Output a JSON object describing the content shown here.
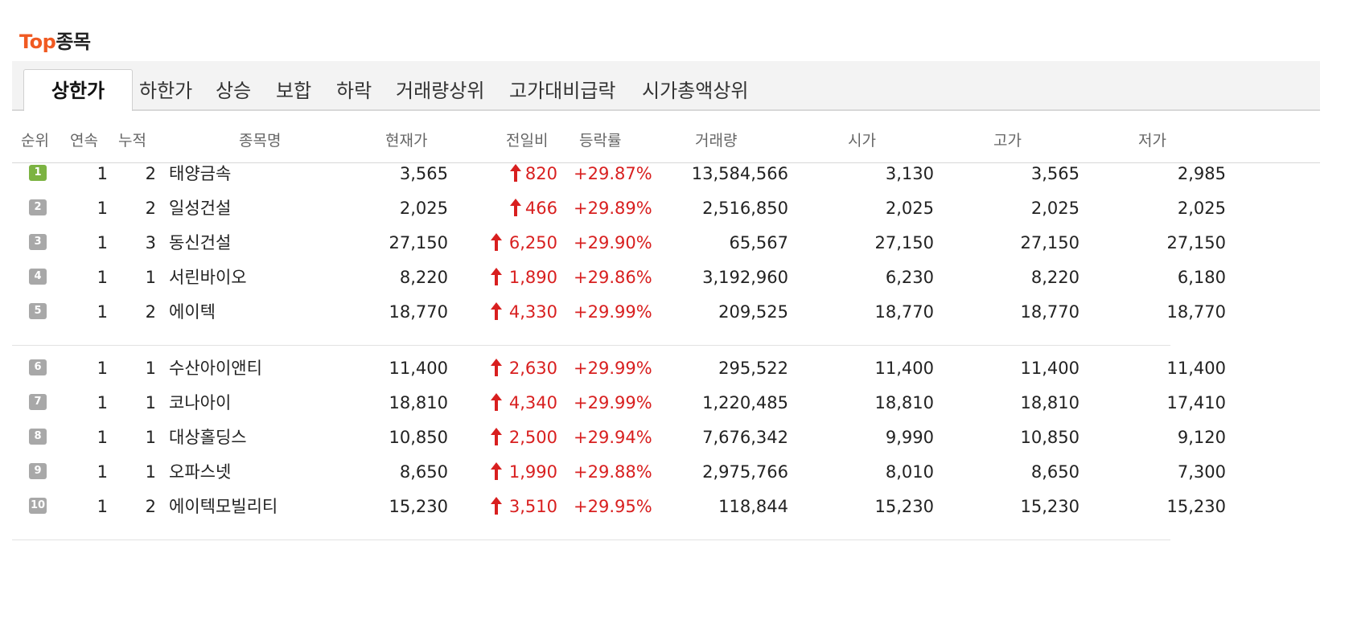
{
  "title": {
    "accent": "Top",
    "rest": "종목"
  },
  "tabs": [
    {
      "label": "상한가",
      "active": true
    },
    {
      "label": "하한가"
    },
    {
      "label": "상승"
    },
    {
      "label": "보합"
    },
    {
      "label": "하락"
    },
    {
      "label": "거래량상위"
    },
    {
      "label": "고가대비급락"
    },
    {
      "label": "시가총액상위"
    }
  ],
  "columns": [
    "순위",
    "연속",
    "누적",
    "종목명",
    "현재가",
    "전일비",
    "등락률",
    "거래량",
    "시가",
    "고가",
    "저가"
  ],
  "rows": [
    {
      "rank": "1",
      "streak": "1",
      "total": "2",
      "name": "태양금속",
      "price": "3,565",
      "change": "820",
      "rate": "+29.87%",
      "volume": "13,584,566",
      "open": "3,130",
      "high": "3,565",
      "low": "2,985"
    },
    {
      "rank": "2",
      "streak": "1",
      "total": "2",
      "name": "일성건설",
      "price": "2,025",
      "change": "466",
      "rate": "+29.89%",
      "volume": "2,516,850",
      "open": "2,025",
      "high": "2,025",
      "low": "2,025"
    },
    {
      "rank": "3",
      "streak": "1",
      "total": "3",
      "name": "동신건설",
      "price": "27,150",
      "change": "6,250",
      "rate": "+29.90%",
      "volume": "65,567",
      "open": "27,150",
      "high": "27,150",
      "low": "27,150"
    },
    {
      "rank": "4",
      "streak": "1",
      "total": "1",
      "name": "서린바이오",
      "price": "8,220",
      "change": "1,890",
      "rate": "+29.86%",
      "volume": "3,192,960",
      "open": "6,230",
      "high": "8,220",
      "low": "6,180"
    },
    {
      "rank": "5",
      "streak": "1",
      "total": "2",
      "name": "에이텍",
      "price": "18,770",
      "change": "4,330",
      "rate": "+29.99%",
      "volume": "209,525",
      "open": "18,770",
      "high": "18,770",
      "low": "18,770"
    },
    {
      "rank": "6",
      "streak": "1",
      "total": "1",
      "name": "수산아이앤티",
      "price": "11,400",
      "change": "2,630",
      "rate": "+29.99%",
      "volume": "295,522",
      "open": "11,400",
      "high": "11,400",
      "low": "11,400"
    },
    {
      "rank": "7",
      "streak": "1",
      "total": "1",
      "name": "코나아이",
      "price": "18,810",
      "change": "4,340",
      "rate": "+29.99%",
      "volume": "1,220,485",
      "open": "18,810",
      "high": "18,810",
      "low": "17,410"
    },
    {
      "rank": "8",
      "streak": "1",
      "total": "1",
      "name": "대상홀딩스",
      "price": "10,850",
      "change": "2,500",
      "rate": "+29.94%",
      "volume": "7,676,342",
      "open": "9,990",
      "high": "10,850",
      "low": "9,120"
    },
    {
      "rank": "9",
      "streak": "1",
      "total": "1",
      "name": "오파스넷",
      "price": "8,650",
      "change": "1,990",
      "rate": "+29.88%",
      "volume": "2,975,766",
      "open": "8,010",
      "high": "8,650",
      "low": "7,300"
    },
    {
      "rank": "10",
      "streak": "1",
      "total": "2",
      "name": "에이텍모빌리티",
      "price": "15,230",
      "change": "3,510",
      "rate": "+29.95%",
      "volume": "118,844",
      "open": "15,230",
      "high": "15,230",
      "low": "15,230"
    }
  ],
  "colors": {
    "accent": "#f05a22",
    "up": "#d81f1f",
    "rank_first": "#7cb342",
    "rank_other": "#a8a8a8"
  },
  "icons": {
    "change_direction": "up-arrow-icon"
  }
}
